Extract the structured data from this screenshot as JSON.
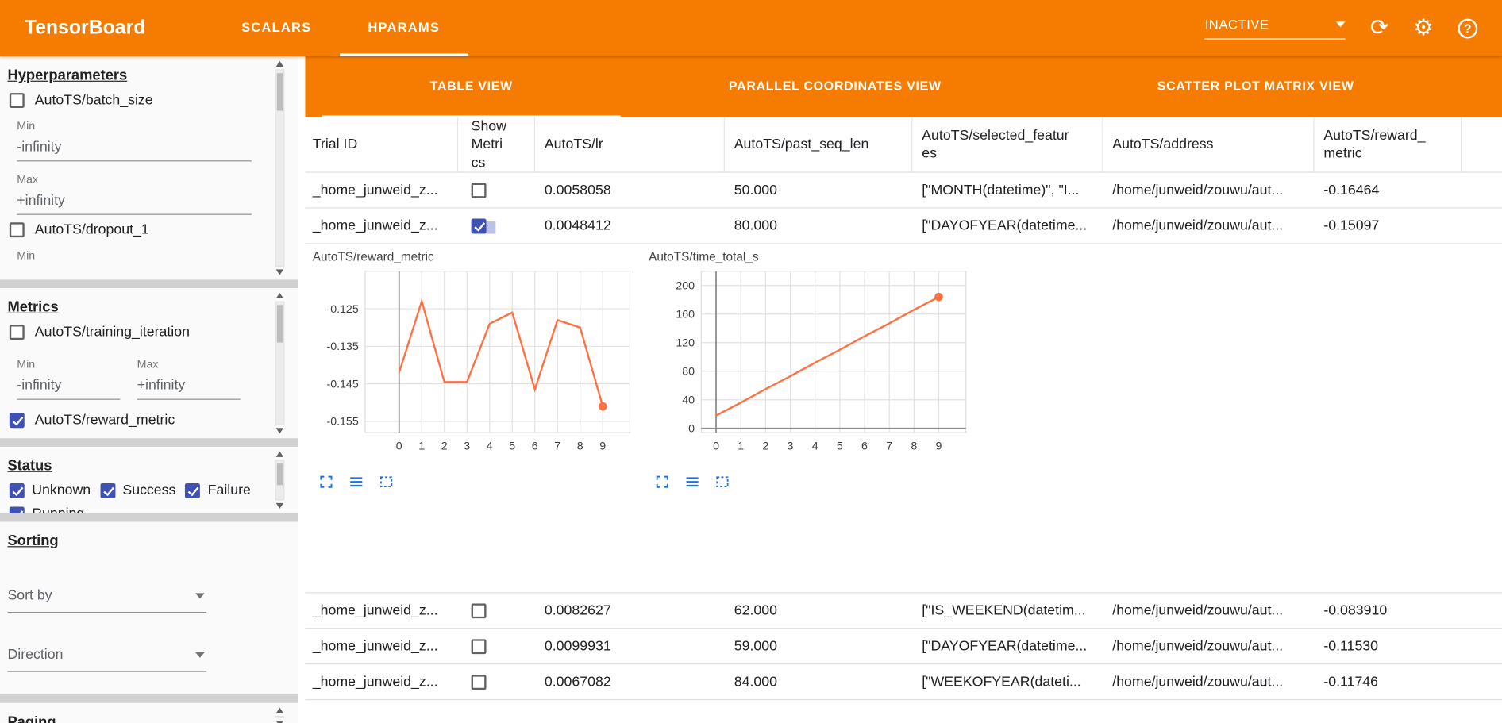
{
  "app": {
    "title": "TensorBoard",
    "top_tabs": [
      {
        "label": "SCALARS",
        "active": false
      },
      {
        "label": "HPARAMS",
        "active": true
      }
    ],
    "run_status": "INACTIVE",
    "header_icons": {
      "refresh": "⟳",
      "settings": "⚙",
      "help": "?"
    }
  },
  "sidebar": {
    "hyperparameters": {
      "heading": "Hyperparameters",
      "min_label": "Min",
      "max_label": "Max",
      "items": [
        {
          "label": "AutoTS/batch_size",
          "checked": false,
          "min_value": "-infinity",
          "max_value": "+infinity"
        },
        {
          "label": "AutoTS/dropout_1",
          "checked": false
        }
      ]
    },
    "metrics": {
      "heading": "Metrics",
      "min_label": "Min",
      "max_label": "Max",
      "items": [
        {
          "label": "AutoTS/training_iteration",
          "checked": false,
          "min_value": "-infinity",
          "max_value": "+infinity"
        },
        {
          "label": "AutoTS/reward_metric",
          "checked": true
        }
      ]
    },
    "status": {
      "heading": "Status",
      "items": [
        {
          "label": "Unknown",
          "checked": true
        },
        {
          "label": "Success",
          "checked": true
        },
        {
          "label": "Failure",
          "checked": true
        },
        {
          "label": "Running",
          "checked": true
        }
      ]
    },
    "sorting": {
      "heading": "Sorting",
      "sort_by_placeholder": "Sort by",
      "direction_placeholder": "Direction"
    },
    "paging": {
      "heading": "Paging"
    }
  },
  "main": {
    "view_tabs": [
      {
        "label": "TABLE VIEW",
        "active": true
      },
      {
        "label": "PARALLEL COORDINATES VIEW",
        "active": false
      },
      {
        "label": "SCATTER PLOT MATRIX VIEW",
        "active": false
      }
    ],
    "table": {
      "columns": [
        "Trial ID",
        "Show Metrics",
        "AutoTS/lr",
        "AutoTS/past_seq_len",
        "AutoTS/selected_features",
        "AutoTS/address",
        "AutoTS/reward_metric"
      ],
      "rows": [
        {
          "trial_id": "_home_junweid_z...",
          "show_metrics": false,
          "lr": "0.0058058",
          "past_seq_len": "50.000",
          "selected_features": "[\"MONTH(datetime)\", \"I...",
          "address": "/home/junweid/zouwu/aut...",
          "reward_metric": "-0.16464"
        },
        {
          "trial_id": "_home_junweid_z...",
          "show_metrics": true,
          "lr": "0.0048412",
          "past_seq_len": "80.000",
          "selected_features": "[\"DAYOFYEAR(datetime...",
          "address": "/home/junweid/zouwu/aut...",
          "reward_metric": "-0.15097"
        },
        {
          "trial_id": "_home_junweid_z...",
          "show_metrics": false,
          "lr": "0.0082627",
          "past_seq_len": "62.000",
          "selected_features": "[\"IS_WEEKEND(datetim...",
          "address": "/home/junweid/zouwu/aut...",
          "reward_metric": "-0.083910"
        },
        {
          "trial_id": "_home_junweid_z...",
          "show_metrics": false,
          "lr": "0.0099931",
          "past_seq_len": "59.000",
          "selected_features": "[\"DAYOFYEAR(datetime...",
          "address": "/home/junweid/zouwu/aut...",
          "reward_metric": "-0.11530"
        },
        {
          "trial_id": "_home_junweid_z...",
          "show_metrics": false,
          "lr": "0.0067082",
          "past_seq_len": "84.000",
          "selected_features": "[\"WEEKOFYEAR(dateti...",
          "address": "/home/junweid/zouwu/aut...",
          "reward_metric": "-0.11746"
        }
      ]
    },
    "chart_toolbar_icons": [
      "fullscreen-icon",
      "list-icon",
      "selection-box-icon"
    ]
  },
  "colors": {
    "header_orange": "#f57c00",
    "checkbox_indigo": "#3f51b5",
    "chart_line": "#ff7043",
    "tool_icon_blue": "#1a73e8"
  },
  "chart_data": [
    {
      "type": "line",
      "title": "AutoTS/reward_metric",
      "x": [
        0,
        1,
        2,
        3,
        4,
        5,
        6,
        7,
        8,
        9
      ],
      "values": [
        -0.142,
        -0.123,
        -0.1445,
        -0.1445,
        -0.129,
        -0.126,
        -0.1465,
        -0.128,
        -0.13,
        -0.151
      ],
      "xticks": [
        0,
        1,
        2,
        3,
        4,
        5,
        6,
        7,
        8,
        9
      ],
      "yticks": [
        -0.125,
        -0.135,
        -0.145,
        -0.155
      ],
      "xlim": [
        -1.5,
        10.2
      ],
      "ylim": [
        -0.158,
        -0.115
      ],
      "grid": true,
      "end_marker": true,
      "line_color": "#ff7043"
    },
    {
      "type": "line",
      "title": "AutoTS/time_total_s",
      "x": [
        0,
        1,
        2,
        3,
        4,
        5,
        6,
        7,
        8,
        9
      ],
      "values": [
        18,
        36,
        55,
        73,
        92,
        110,
        129,
        147,
        166,
        184
      ],
      "xticks": [
        0,
        1,
        2,
        3,
        4,
        5,
        6,
        7,
        8,
        9
      ],
      "yticks": [
        0,
        40,
        80,
        120,
        160,
        200
      ],
      "xlim": [
        -0.6,
        10.1
      ],
      "ylim": [
        -6,
        220
      ],
      "grid": true,
      "end_marker": true,
      "line_color": "#ff7043"
    }
  ]
}
